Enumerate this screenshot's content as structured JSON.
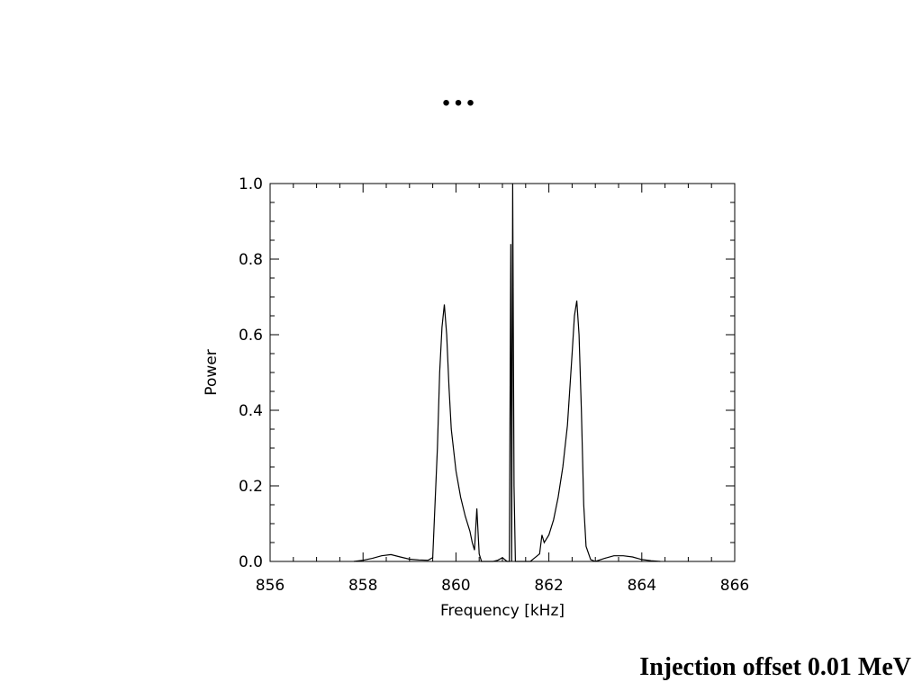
{
  "slide": {
    "title": "…",
    "caption": "Injection offset 0.01 MeV"
  },
  "chart_data": {
    "type": "line",
    "title": "",
    "xlabel": "Frequency [kHz]",
    "ylabel": "Power",
    "xlim": [
      856,
      866
    ],
    "ylim": [
      0,
      1.0
    ],
    "x_ticks": [
      856,
      858,
      860,
      862,
      864,
      866
    ],
    "x_tick_labels": [
      "856",
      "858",
      "860",
      "862",
      "864",
      "866"
    ],
    "y_ticks": [
      0,
      0.2,
      0.4,
      0.6,
      0.8,
      1.0
    ],
    "y_tick_labels": [
      "0.0",
      "0.2",
      "0.4",
      "0.6",
      "0.8",
      "1.0"
    ],
    "grid": false,
    "line_color": "#000000",
    "series": [
      {
        "x": [
          857.8,
          858.0,
          858.2,
          858.4,
          858.6,
          858.8,
          859.0,
          859.2,
          859.4,
          859.5,
          859.6,
          859.65,
          859.7,
          859.75,
          859.8,
          859.85,
          859.9,
          860.0,
          860.1,
          860.2,
          860.3,
          860.35,
          860.4,
          860.45,
          860.5,
          860.55,
          860.6,
          860.7,
          860.8,
          860.9,
          861.0,
          861.1,
          861.15,
          861.18,
          861.2,
          861.22,
          861.25,
          861.28,
          861.3,
          861.35,
          861.4,
          861.5,
          861.6,
          861.7,
          861.8,
          861.85,
          861.9,
          861.95,
          862.0,
          862.05,
          862.1,
          862.2,
          862.3,
          862.4,
          862.5,
          862.55,
          862.6,
          862.65,
          862.7,
          862.75,
          862.8,
          862.9,
          863.0,
          863.2,
          863.4,
          863.6,
          863.8,
          864.0,
          864.2,
          864.4
        ],
        "y": [
          0.0,
          0.003,
          0.008,
          0.015,
          0.018,
          0.012,
          0.006,
          0.004,
          0.003,
          0.01,
          0.3,
          0.5,
          0.62,
          0.68,
          0.6,
          0.46,
          0.35,
          0.24,
          0.17,
          0.12,
          0.08,
          0.05,
          0.03,
          0.14,
          0.02,
          0.0,
          0.0,
          0.0,
          0.0,
          0.003,
          0.01,
          0.0,
          0.0,
          0.84,
          0.0,
          1.0,
          0.2,
          0.0,
          0.0,
          0.0,
          0.0,
          0.0,
          0.0,
          0.01,
          0.02,
          0.07,
          0.05,
          0.06,
          0.07,
          0.09,
          0.11,
          0.17,
          0.25,
          0.36,
          0.55,
          0.65,
          0.69,
          0.6,
          0.4,
          0.15,
          0.04,
          0.005,
          0.0,
          0.008,
          0.015,
          0.015,
          0.012,
          0.005,
          0.002,
          0.0
        ]
      }
    ]
  }
}
